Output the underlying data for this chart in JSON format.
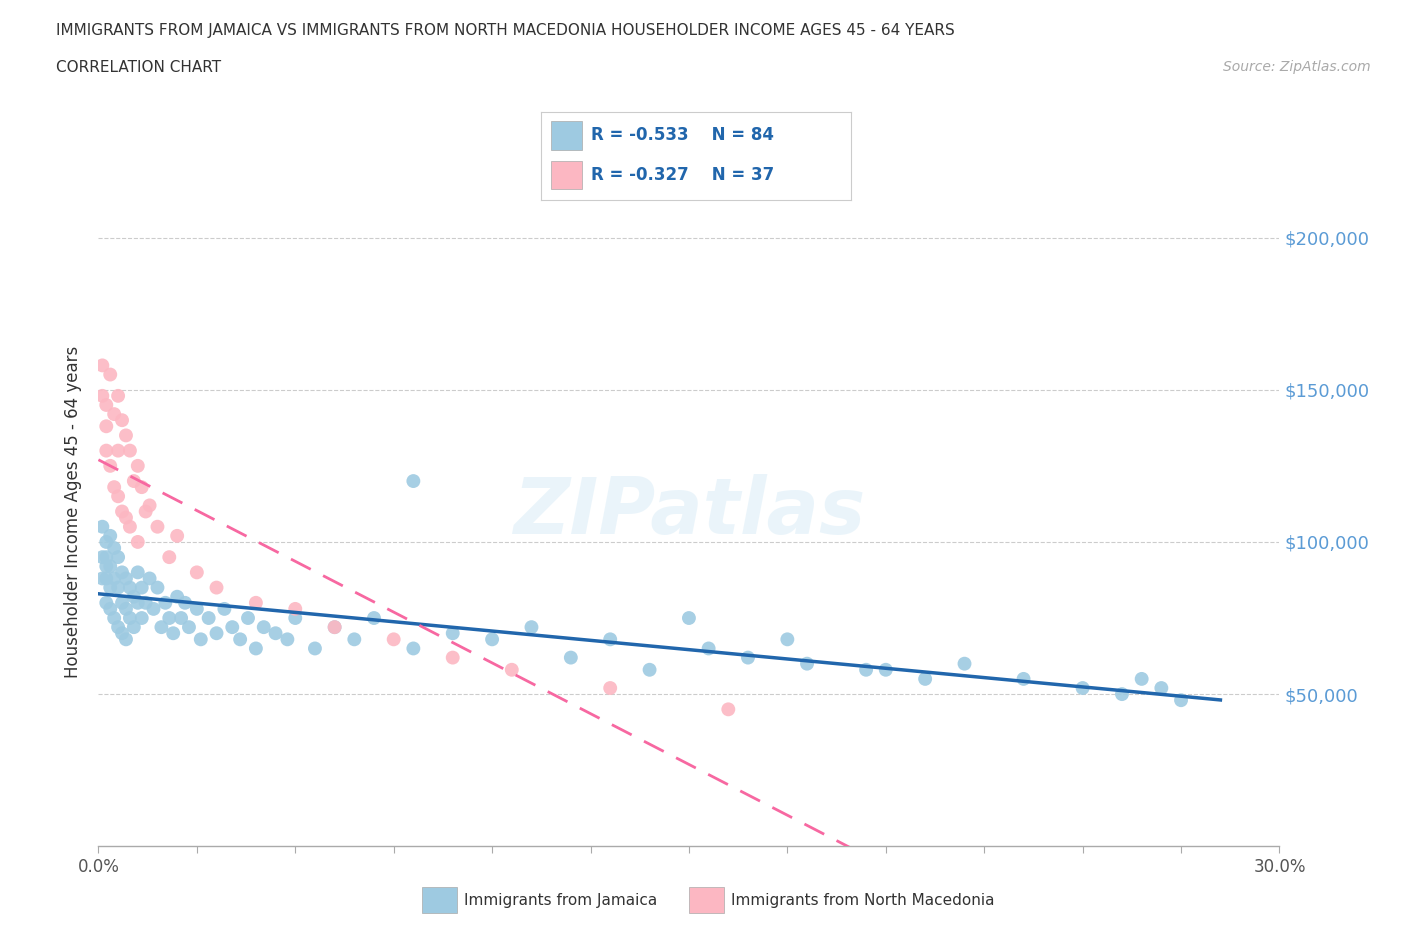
{
  "title_line1": "IMMIGRANTS FROM JAMAICA VS IMMIGRANTS FROM NORTH MACEDONIA HOUSEHOLDER INCOME AGES 45 - 64 YEARS",
  "title_line2": "CORRELATION CHART",
  "source_text": "Source: ZipAtlas.com",
  "ylabel": "Householder Income Ages 45 - 64 years",
  "xlim": [
    0.0,
    0.3
  ],
  "ylim": [
    0,
    220000
  ],
  "color_jamaica": "#9ecae1",
  "color_macedonia": "#fcb7c2",
  "color_jamaica_line": "#2166ac",
  "color_macedonia_line": "#f768a1",
  "watermark_text": "ZIPatlas",
  "legend_r1": "R = -0.533",
  "legend_n1": "N = 84",
  "legend_r2": "R = -0.327",
  "legend_n2": "N = 37",
  "jamaica_x": [
    0.001,
    0.001,
    0.001,
    0.002,
    0.002,
    0.002,
    0.002,
    0.002,
    0.003,
    0.003,
    0.003,
    0.003,
    0.004,
    0.004,
    0.004,
    0.005,
    0.005,
    0.005,
    0.006,
    0.006,
    0.006,
    0.007,
    0.007,
    0.007,
    0.008,
    0.008,
    0.009,
    0.009,
    0.01,
    0.01,
    0.011,
    0.011,
    0.012,
    0.013,
    0.014,
    0.015,
    0.016,
    0.017,
    0.018,
    0.019,
    0.02,
    0.021,
    0.022,
    0.023,
    0.025,
    0.026,
    0.028,
    0.03,
    0.032,
    0.034,
    0.036,
    0.038,
    0.04,
    0.042,
    0.045,
    0.048,
    0.05,
    0.055,
    0.06,
    0.065,
    0.07,
    0.08,
    0.09,
    0.1,
    0.11,
    0.12,
    0.13,
    0.14,
    0.155,
    0.165,
    0.18,
    0.195,
    0.21,
    0.22,
    0.235,
    0.25,
    0.26,
    0.265,
    0.27,
    0.275,
    0.08,
    0.15,
    0.175,
    0.2
  ],
  "jamaica_y": [
    95000,
    88000,
    105000,
    100000,
    92000,
    88000,
    80000,
    95000,
    102000,
    85000,
    92000,
    78000,
    98000,
    88000,
    75000,
    95000,
    85000,
    72000,
    90000,
    80000,
    70000,
    88000,
    78000,
    68000,
    85000,
    75000,
    82000,
    72000,
    90000,
    80000,
    85000,
    75000,
    80000,
    88000,
    78000,
    85000,
    72000,
    80000,
    75000,
    70000,
    82000,
    75000,
    80000,
    72000,
    78000,
    68000,
    75000,
    70000,
    78000,
    72000,
    68000,
    75000,
    65000,
    72000,
    70000,
    68000,
    75000,
    65000,
    72000,
    68000,
    75000,
    65000,
    70000,
    68000,
    72000,
    62000,
    68000,
    58000,
    65000,
    62000,
    60000,
    58000,
    55000,
    60000,
    55000,
    52000,
    50000,
    55000,
    52000,
    48000,
    120000,
    75000,
    68000,
    58000
  ],
  "macedonia_x": [
    0.001,
    0.001,
    0.002,
    0.002,
    0.002,
    0.003,
    0.003,
    0.004,
    0.004,
    0.005,
    0.005,
    0.005,
    0.006,
    0.006,
    0.007,
    0.007,
    0.008,
    0.008,
    0.009,
    0.01,
    0.01,
    0.011,
    0.012,
    0.013,
    0.015,
    0.018,
    0.02,
    0.025,
    0.03,
    0.04,
    0.05,
    0.06,
    0.075,
    0.09,
    0.105,
    0.13,
    0.16
  ],
  "macedonia_y": [
    158000,
    148000,
    145000,
    138000,
    130000,
    155000,
    125000,
    142000,
    118000,
    148000,
    130000,
    115000,
    140000,
    110000,
    135000,
    108000,
    130000,
    105000,
    120000,
    125000,
    100000,
    118000,
    110000,
    112000,
    105000,
    95000,
    102000,
    90000,
    85000,
    80000,
    78000,
    72000,
    68000,
    62000,
    58000,
    52000,
    45000
  ]
}
